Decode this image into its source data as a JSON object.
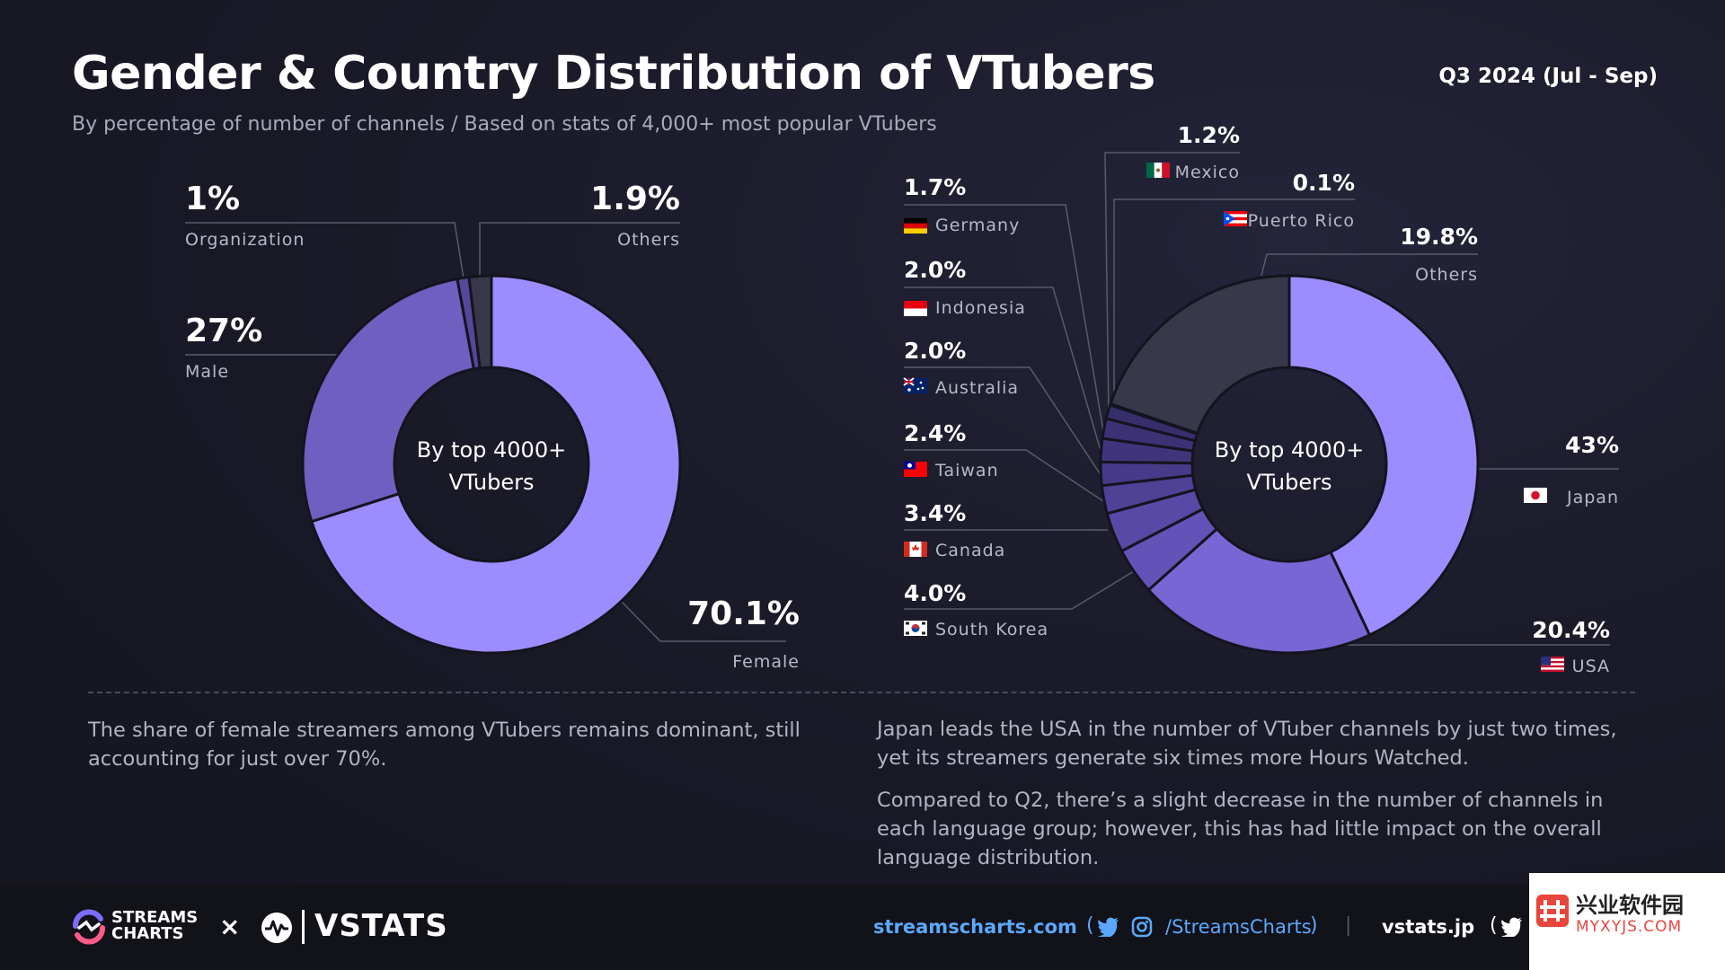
{
  "header": {
    "title": "Gender & Country Distribution of VTubers",
    "subtitle": "By percentage of number of channels / Based on stats of 4,000+ most popular VTubers",
    "period": "Q3 2024 (Jul - Sep)"
  },
  "colors": {
    "background": "#1a1a28",
    "primary": "#9d8cff",
    "secondary": "#6f5fc0",
    "dark_slice": "#38384a",
    "accent_link": "#5aa9ff"
  },
  "chart_data": [
    {
      "type": "pie",
      "variant": "donut",
      "center_text": [
        "By top 4000+",
        "VTubers"
      ],
      "slices": [
        {
          "label": "Female",
          "value": 70.1,
          "display": "70.1%",
          "color": "#9d8cff"
        },
        {
          "label": "Male",
          "value": 27,
          "display": "27%",
          "color": "#6f5fc0"
        },
        {
          "label": "Organization",
          "value": 1,
          "display": "1%",
          "color": "#55489a"
        },
        {
          "label": "Others",
          "value": 1.9,
          "display": "1.9%",
          "color": "#38384a"
        }
      ]
    },
    {
      "type": "pie",
      "variant": "donut",
      "center_text": [
        "By top 4000+",
        "VTubers"
      ],
      "slices": [
        {
          "label": "Japan",
          "value": 43,
          "display": "43%",
          "color": "#9d8cff",
          "flag": "japan-flag"
        },
        {
          "label": "USA",
          "value": 20.4,
          "display": "20.4%",
          "color": "#7766d4",
          "flag": "usa-flag"
        },
        {
          "label": "South Korea",
          "value": 4.0,
          "display": "4.0%",
          "color": "#6353b8",
          "flag": "south-korea-flag"
        },
        {
          "label": "Canada",
          "value": 3.4,
          "display": "3.4%",
          "color": "#5849a6",
          "flag": "canada-flag"
        },
        {
          "label": "Taiwan",
          "value": 2.4,
          "display": "2.4%",
          "color": "#4e4196",
          "flag": "taiwan-flag"
        },
        {
          "label": "Australia",
          "value": 2.0,
          "display": "2.0%",
          "color": "#463a89",
          "flag": "australia-flag"
        },
        {
          "label": "Indonesia",
          "value": 2.0,
          "display": "2.0%",
          "color": "#40357d",
          "flag": "indonesia-flag"
        },
        {
          "label": "Germany",
          "value": 1.7,
          "display": "1.7%",
          "color": "#3b3174",
          "flag": "germany-flag"
        },
        {
          "label": "Mexico",
          "value": 1.2,
          "display": "1.2%",
          "color": "#372e6c",
          "flag": "mexico-flag"
        },
        {
          "label": "Puerto Rico",
          "value": 0.1,
          "display": "0.1%",
          "color": "#342b66",
          "flag": "puerto-rico-flag"
        },
        {
          "label": "Others",
          "value": 19.8,
          "display": "19.8%",
          "color": "#38384a"
        }
      ]
    }
  ],
  "notes": {
    "left": "The share of female streamers among VTubers remains dominant, still accounting for just over 70%.",
    "right_1": "Japan leads the USA in the number of VTuber channels by just two times, yet its streamers generate six times more Hours Watched.",
    "right_2": "Compared to Q2, there’s a slight decrease in the number of channels in each language group; however, this has had little impact on the overall language distribution."
  },
  "footer": {
    "logo_line1": "STREAMS",
    "logo_line2": "CHARTS",
    "times": "×",
    "vstats": "VSTATS",
    "site": "streamscharts.com",
    "paren_open": "(",
    "handle": "/StreamsCharts",
    "paren_close": ")",
    "separator": "|",
    "site2": "vstats.jp",
    "paren_open2": "(",
    "watermark_cn": "兴业软件园",
    "watermark_en": "MYXYJS.COM"
  }
}
